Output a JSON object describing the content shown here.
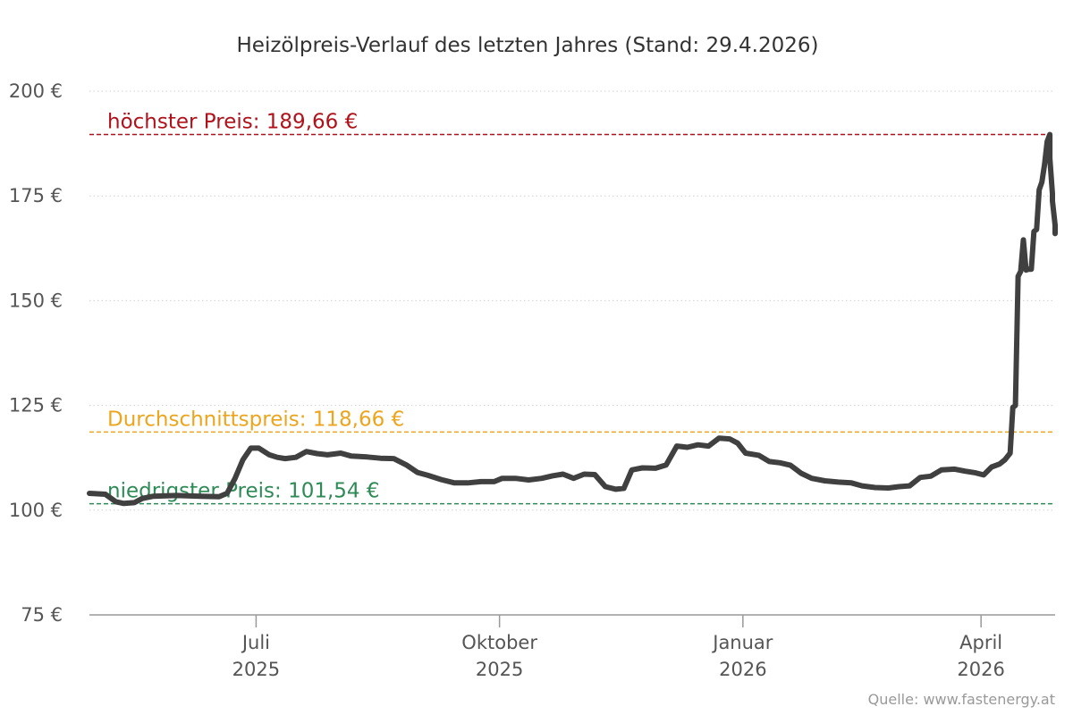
{
  "chart_data": {
    "type": "line",
    "title": "Heizölpreis-Verlauf des letzten Jahres (Stand: 29.4.2026)",
    "source": "Quelle: www.fastenergy.at",
    "ylim": [
      75,
      200
    ],
    "y_ticks": [
      {
        "value": 75,
        "label": "75 €"
      },
      {
        "value": 100,
        "label": "100 €"
      },
      {
        "value": 125,
        "label": "125 €"
      },
      {
        "value": 150,
        "label": "150 €"
      },
      {
        "value": 175,
        "label": "175 €"
      },
      {
        "value": 200,
        "label": "200 €"
      }
    ],
    "x_range": [
      "2025-04-29",
      "2026-04-29"
    ],
    "x_ticks": [
      {
        "date": "2025-07-01",
        "month": "Juli",
        "year": "2025"
      },
      {
        "date": "2025-10-01",
        "month": "Oktober",
        "year": "2025"
      },
      {
        "date": "2026-01-01",
        "month": "Januar",
        "year": "2026"
      },
      {
        "date": "2026-04-01",
        "month": "April",
        "year": "2026"
      }
    ],
    "grid": "horizontal-dotted",
    "reference_lines": [
      {
        "label": "höchster Preis: 189,66 €",
        "value": 189.66,
        "color": "#b0111b"
      },
      {
        "label": "Durchschnittspreis: 118,66 €",
        "value": 118.66,
        "color": "#eca51d"
      },
      {
        "label": "niedrigster Preis: 101,54 €",
        "value": 101.54,
        "color": "#2e8b57"
      }
    ],
    "series": [
      {
        "color": "#404040",
        "points": [
          [
            "2025-04-29",
            104.0
          ],
          [
            "2025-05-05",
            103.8
          ],
          [
            "2025-05-09",
            102.0
          ],
          [
            "2025-05-12",
            101.6
          ],
          [
            "2025-05-16",
            101.8
          ],
          [
            "2025-05-19",
            102.8
          ],
          [
            "2025-05-23",
            103.3
          ],
          [
            "2025-06-01",
            103.5
          ],
          [
            "2025-06-10",
            103.3
          ],
          [
            "2025-06-17",
            103.2
          ],
          [
            "2025-06-20",
            104.0
          ],
          [
            "2025-06-23",
            107.5
          ],
          [
            "2025-06-26",
            112.0
          ],
          [
            "2025-06-29",
            114.8
          ],
          [
            "2025-07-02",
            114.8
          ],
          [
            "2025-07-06",
            113.2
          ],
          [
            "2025-07-09",
            112.6
          ],
          [
            "2025-07-12",
            112.3
          ],
          [
            "2025-07-16",
            112.6
          ],
          [
            "2025-07-20",
            114.0
          ],
          [
            "2025-07-24",
            113.5
          ],
          [
            "2025-07-28",
            113.2
          ],
          [
            "2025-08-02",
            113.6
          ],
          [
            "2025-08-06",
            112.9
          ],
          [
            "2025-08-12",
            112.7
          ],
          [
            "2025-08-17",
            112.4
          ],
          [
            "2025-08-22",
            112.3
          ],
          [
            "2025-08-27",
            110.7
          ],
          [
            "2025-08-31",
            109.0
          ],
          [
            "2025-09-04",
            108.3
          ],
          [
            "2025-09-09",
            107.3
          ],
          [
            "2025-09-14",
            106.5
          ],
          [
            "2025-09-19",
            106.5
          ],
          [
            "2025-09-24",
            106.8
          ],
          [
            "2025-09-29",
            106.8
          ],
          [
            "2025-10-02",
            107.6
          ],
          [
            "2025-10-07",
            107.6
          ],
          [
            "2025-10-12",
            107.2
          ],
          [
            "2025-10-17",
            107.6
          ],
          [
            "2025-10-21",
            108.2
          ],
          [
            "2025-10-25",
            108.6
          ],
          [
            "2025-10-29",
            107.6
          ],
          [
            "2025-11-02",
            108.6
          ],
          [
            "2025-11-06",
            108.5
          ],
          [
            "2025-11-10",
            105.6
          ],
          [
            "2025-11-14",
            105.0
          ],
          [
            "2025-11-17",
            105.2
          ],
          [
            "2025-11-20",
            109.6
          ],
          [
            "2025-11-24",
            110.1
          ],
          [
            "2025-11-29",
            110.0
          ],
          [
            "2025-12-03",
            110.8
          ],
          [
            "2025-12-07",
            115.3
          ],
          [
            "2025-12-11",
            115.0
          ],
          [
            "2025-12-15",
            115.6
          ],
          [
            "2025-12-19",
            115.3
          ],
          [
            "2025-12-23",
            117.2
          ],
          [
            "2025-12-27",
            117.0
          ],
          [
            "2025-12-30",
            116.0
          ],
          [
            "2026-01-02",
            113.6
          ],
          [
            "2026-01-07",
            113.1
          ],
          [
            "2026-01-11",
            111.6
          ],
          [
            "2026-01-15",
            111.3
          ],
          [
            "2026-01-19",
            110.7
          ],
          [
            "2026-01-23",
            108.8
          ],
          [
            "2026-01-27",
            107.6
          ],
          [
            "2026-02-01",
            107.0
          ],
          [
            "2026-02-06",
            106.7
          ],
          [
            "2026-02-11",
            106.5
          ],
          [
            "2026-02-15",
            105.8
          ],
          [
            "2026-02-20",
            105.4
          ],
          [
            "2026-02-25",
            105.3
          ],
          [
            "2026-03-01",
            105.6
          ],
          [
            "2026-03-05",
            105.8
          ],
          [
            "2026-03-09",
            107.8
          ],
          [
            "2026-03-13",
            108.1
          ],
          [
            "2026-03-17",
            109.6
          ],
          [
            "2026-03-22",
            109.8
          ],
          [
            "2026-03-26",
            109.3
          ],
          [
            "2026-03-30",
            108.9
          ],
          [
            "2026-04-02",
            108.4
          ],
          [
            "2026-04-05",
            110.3
          ],
          [
            "2026-04-08",
            111.0
          ],
          [
            "2026-04-10",
            112.0
          ],
          [
            "2026-04-12",
            113.6
          ],
          [
            "2026-04-13",
            124.5
          ],
          [
            "2026-04-14",
            125.0
          ],
          [
            "2026-04-15",
            155.8
          ],
          [
            "2026-04-16",
            157.0
          ],
          [
            "2026-04-17",
            164.5
          ],
          [
            "2026-04-18",
            157.3
          ],
          [
            "2026-04-19",
            157.5
          ],
          [
            "2026-04-20",
            157.5
          ],
          [
            "2026-04-21",
            166.5
          ],
          [
            "2026-04-22",
            167.0
          ],
          [
            "2026-04-23",
            176.5
          ],
          [
            "2026-04-24",
            178.3
          ],
          [
            "2026-04-25",
            182.5
          ],
          [
            "2026-04-26",
            188.0
          ],
          [
            "2026-04-27",
            189.66
          ],
          [
            "2026-04-27",
            184.0
          ],
          [
            "2026-04-28",
            175.5
          ],
          [
            "2026-04-28",
            173.8
          ],
          [
            "2026-04-29",
            168.0
          ],
          [
            "2026-04-29",
            166.0
          ]
        ]
      }
    ]
  }
}
